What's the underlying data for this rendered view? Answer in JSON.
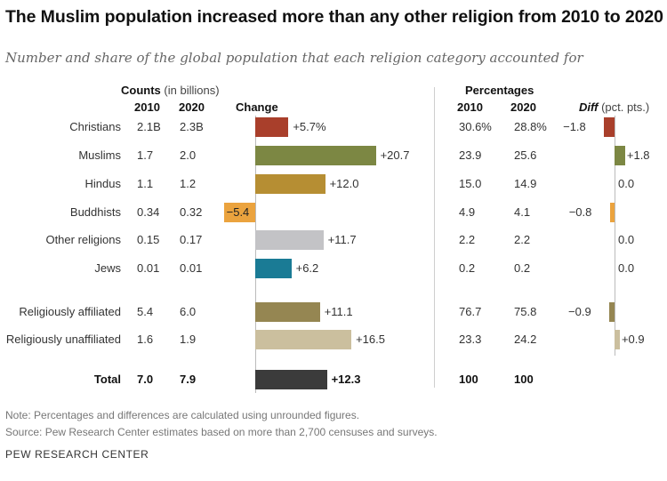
{
  "title": "The Muslim population increased more than any other religion from 2010 to 2020",
  "subtitle": "Number and share of the global population that each religion category accounted for",
  "headers": {
    "counts": "Counts",
    "counts_unit": "(in billions)",
    "y2010": "2010",
    "y2020": "2020",
    "change": "Change",
    "percentages": "Percentages",
    "p2010": "2010",
    "p2020": "2020",
    "diff": "Diff",
    "diff_unit": "(pct. pts.)"
  },
  "rows": [
    {
      "label": "Christians",
      "c2010": "2.1B",
      "c2020": "2.3B",
      "change": 5.7,
      "change_label": "+5.7%",
      "change_color": "#a93f2b",
      "p2010": "30.6%",
      "p2020": "28.8%",
      "diff": -1.8,
      "diff_label": "−1.8",
      "diff_color": "#a93f2b",
      "bold": false
    },
    {
      "label": "Muslims",
      "c2010": "1.7",
      "c2020": "2.0",
      "change": 20.7,
      "change_label": "+20.7",
      "change_color": "#7c8743",
      "p2010": "23.9",
      "p2020": "25.6",
      "diff": 1.8,
      "diff_label": "+1.8",
      "diff_color": "#7c8743",
      "bold": false
    },
    {
      "label": "Hindus",
      "c2010": "1.1",
      "c2020": "1.2",
      "change": 12.0,
      "change_label": "+12.0",
      "change_color": "#b68e33",
      "p2010": "15.0",
      "p2020": "14.9",
      "diff": 0.0,
      "diff_label": "0.0",
      "diff_color": "#b68e33",
      "bold": false
    },
    {
      "label": "Buddhists",
      "c2010": "0.34",
      "c2020": "0.32",
      "change": -5.4,
      "change_label": "−5.4",
      "change_color": "#eba33e",
      "p2010": "4.9",
      "p2020": "4.1",
      "diff": -0.8,
      "diff_label": "−0.8",
      "diff_color": "#eba33e",
      "bold": false
    },
    {
      "label": "Other religions",
      "c2010": "0.15",
      "c2020": "0.17",
      "change": 11.7,
      "change_label": "+11.7",
      "change_color": "#c3c3c6",
      "p2010": "2.2",
      "p2020": "2.2",
      "diff": 0.0,
      "diff_label": "0.0",
      "diff_color": "#c3c3c6",
      "bold": false
    },
    {
      "label": "Jews",
      "c2010": "0.01",
      "c2020": "0.01",
      "change": 6.2,
      "change_label": "+6.2",
      "change_color": "#1a7b95",
      "p2010": "0.2",
      "p2020": "0.2",
      "diff": 0.0,
      "diff_label": "0.0",
      "diff_color": "#1a7b95",
      "bold": false
    },
    {
      "label": "Religiously affiliated",
      "c2010": "5.4",
      "c2020": "6.0",
      "change": 11.1,
      "change_label": "+11.1",
      "change_color": "#958652",
      "p2010": "76.7",
      "p2020": "75.8",
      "diff": -0.9,
      "diff_label": "−0.9",
      "diff_color": "#958652",
      "bold": false
    },
    {
      "label": "Religiously unaffiliated",
      "c2010": "1.6",
      "c2020": "1.9",
      "change": 16.5,
      "change_label": "+16.5",
      "change_color": "#cbbf9e",
      "p2010": "23.3",
      "p2020": "24.2",
      "diff": 0.9,
      "diff_label": "+0.9",
      "diff_color": "#cbbf9e",
      "bold": false
    },
    {
      "label": "Total",
      "c2010": "7.0",
      "c2020": "7.9",
      "change": 12.3,
      "change_label": "+12.3",
      "change_color": "#3b3b3b",
      "p2010": "100",
      "p2020": "100",
      "diff": null,
      "diff_label": "",
      "diff_color": "#3b3b3b",
      "bold": true
    }
  ],
  "chart_data": [
    {
      "type": "bar",
      "title": "Change",
      "categories": [
        "Christians",
        "Muslims",
        "Hindus",
        "Buddhists",
        "Other religions",
        "Jews",
        "Religiously affiliated",
        "Religiously unaffiliated",
        "Total"
      ],
      "values": [
        5.7,
        20.7,
        12.0,
        -5.4,
        11.7,
        6.2,
        11.1,
        16.5,
        12.3
      ]
    },
    {
      "type": "bar",
      "title": "Diff (pct. pts.)",
      "categories": [
        "Christians",
        "Muslims",
        "Hindus",
        "Buddhists",
        "Other religions",
        "Jews",
        "Religiously affiliated",
        "Religiously unaffiliated"
      ],
      "values": [
        -1.8,
        1.8,
        0.0,
        -0.8,
        0.0,
        0.0,
        -0.9,
        0.9
      ]
    }
  ],
  "note": "Note: Percentages and differences are calculated using unrounded figures.",
  "source": "Source: Pew Research Center estimates based on more than 2,700 censuses and surveys.",
  "brand": "PEW RESEARCH CENTER"
}
